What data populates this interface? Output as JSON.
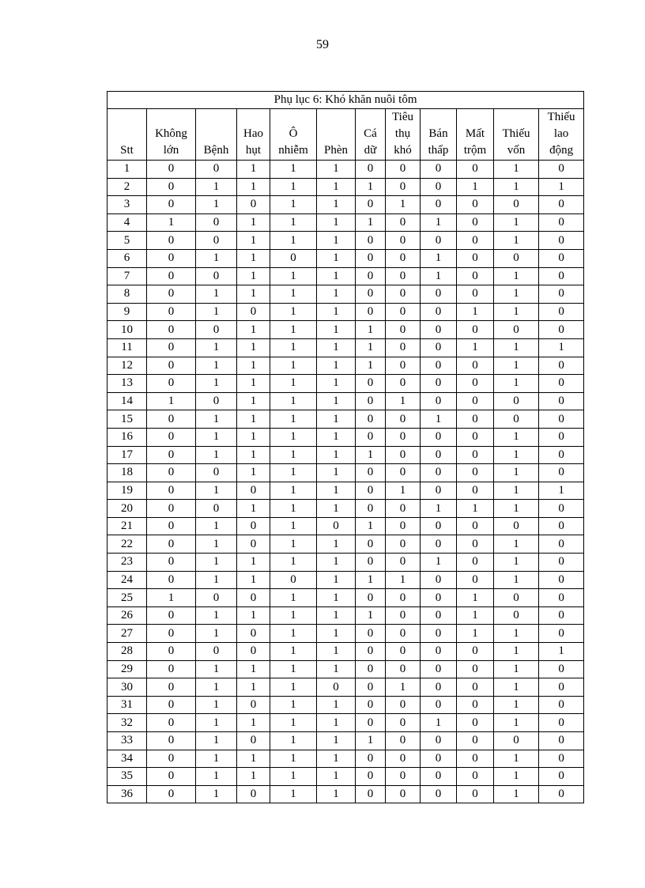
{
  "page_number": "59",
  "table": {
    "title": "Phụ lục 6:  Khó khăn nuôi tôm",
    "headers": [
      [
        "Stt"
      ],
      [
        "Không",
        "lớn"
      ],
      [
        "Bệnh"
      ],
      [
        "Hao",
        "hụt"
      ],
      [
        "Ô",
        "nhiễm"
      ],
      [
        "Phèn"
      ],
      [
        "Cá",
        "dữ"
      ],
      [
        "Tiêu",
        "thụ",
        "khó"
      ],
      [
        "Bán",
        "thấp"
      ],
      [
        "Mất",
        "trộm"
      ],
      [
        "Thiếu",
        "vốn"
      ],
      [
        "Thiếu",
        "lao",
        "động"
      ]
    ],
    "rows": [
      [
        1,
        0,
        0,
        1,
        1,
        1,
        0,
        0,
        0,
        0,
        1,
        0
      ],
      [
        2,
        0,
        1,
        1,
        1,
        1,
        1,
        0,
        0,
        1,
        1,
        1
      ],
      [
        3,
        0,
        1,
        0,
        1,
        1,
        0,
        1,
        0,
        0,
        0,
        0
      ],
      [
        4,
        1,
        0,
        1,
        1,
        1,
        1,
        0,
        1,
        0,
        1,
        0
      ],
      [
        5,
        0,
        0,
        1,
        1,
        1,
        0,
        0,
        0,
        0,
        1,
        0
      ],
      [
        6,
        0,
        1,
        1,
        0,
        1,
        0,
        0,
        1,
        0,
        0,
        0
      ],
      [
        7,
        0,
        0,
        1,
        1,
        1,
        0,
        0,
        1,
        0,
        1,
        0
      ],
      [
        8,
        0,
        1,
        1,
        1,
        1,
        0,
        0,
        0,
        0,
        1,
        0
      ],
      [
        9,
        0,
        1,
        0,
        1,
        1,
        0,
        0,
        0,
        1,
        1,
        0
      ],
      [
        10,
        0,
        0,
        1,
        1,
        1,
        1,
        0,
        0,
        0,
        0,
        0
      ],
      [
        11,
        0,
        1,
        1,
        1,
        1,
        1,
        0,
        0,
        1,
        1,
        1
      ],
      [
        12,
        0,
        1,
        1,
        1,
        1,
        1,
        0,
        0,
        0,
        1,
        0
      ],
      [
        13,
        0,
        1,
        1,
        1,
        1,
        0,
        0,
        0,
        0,
        1,
        0
      ],
      [
        14,
        1,
        0,
        1,
        1,
        1,
        0,
        1,
        0,
        0,
        0,
        0
      ],
      [
        15,
        0,
        1,
        1,
        1,
        1,
        0,
        0,
        1,
        0,
        0,
        0
      ],
      [
        16,
        0,
        1,
        1,
        1,
        1,
        0,
        0,
        0,
        0,
        1,
        0
      ],
      [
        17,
        0,
        1,
        1,
        1,
        1,
        1,
        0,
        0,
        0,
        1,
        0
      ],
      [
        18,
        0,
        0,
        1,
        1,
        1,
        0,
        0,
        0,
        0,
        1,
        0
      ],
      [
        19,
        0,
        1,
        0,
        1,
        1,
        0,
        1,
        0,
        0,
        1,
        1
      ],
      [
        20,
        0,
        0,
        1,
        1,
        1,
        0,
        0,
        1,
        1,
        1,
        0
      ],
      [
        21,
        0,
        1,
        0,
        1,
        0,
        1,
        0,
        0,
        0,
        0,
        0
      ],
      [
        22,
        0,
        1,
        0,
        1,
        1,
        0,
        0,
        0,
        0,
        1,
        0
      ],
      [
        23,
        0,
        1,
        1,
        1,
        1,
        0,
        0,
        1,
        0,
        1,
        0
      ],
      [
        24,
        0,
        1,
        1,
        0,
        1,
        1,
        1,
        0,
        0,
        1,
        0
      ],
      [
        25,
        1,
        0,
        0,
        1,
        1,
        0,
        0,
        0,
        1,
        0,
        0
      ],
      [
        26,
        0,
        1,
        1,
        1,
        1,
        1,
        0,
        0,
        1,
        0,
        0
      ],
      [
        27,
        0,
        1,
        0,
        1,
        1,
        0,
        0,
        0,
        1,
        1,
        0
      ],
      [
        28,
        0,
        0,
        0,
        1,
        1,
        0,
        0,
        0,
        0,
        1,
        1
      ],
      [
        29,
        0,
        1,
        1,
        1,
        1,
        0,
        0,
        0,
        0,
        1,
        0
      ],
      [
        30,
        0,
        1,
        1,
        1,
        0,
        0,
        1,
        0,
        0,
        1,
        0
      ],
      [
        31,
        0,
        1,
        0,
        1,
        1,
        0,
        0,
        0,
        0,
        1,
        0
      ],
      [
        32,
        0,
        1,
        1,
        1,
        1,
        0,
        0,
        1,
        0,
        1,
        0
      ],
      [
        33,
        0,
        1,
        0,
        1,
        1,
        1,
        0,
        0,
        0,
        0,
        0
      ],
      [
        34,
        0,
        1,
        1,
        1,
        1,
        0,
        0,
        0,
        0,
        1,
        0
      ],
      [
        35,
        0,
        1,
        1,
        1,
        1,
        0,
        0,
        0,
        0,
        1,
        0
      ],
      [
        36,
        0,
        1,
        0,
        1,
        1,
        0,
        0,
        0,
        0,
        1,
        0
      ]
    ]
  }
}
